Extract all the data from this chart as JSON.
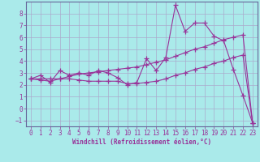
{
  "xlabel": "Windchill (Refroidissement éolien,°C)",
  "bg_color": "#aaeaea",
  "grid_color": "#aaaacc",
  "line_color": "#993399",
  "x_data": [
    0,
    1,
    2,
    3,
    4,
    5,
    6,
    7,
    8,
    9,
    10,
    11,
    12,
    13,
    14,
    15,
    16,
    17,
    18,
    19,
    20,
    21,
    22,
    23
  ],
  "y_main": [
    2.5,
    2.8,
    2.2,
    3.2,
    2.8,
    3.0,
    2.8,
    3.2,
    3.0,
    2.6,
    2.0,
    2.2,
    4.2,
    3.2,
    4.3,
    8.7,
    6.5,
    7.2,
    7.2,
    6.1,
    5.7,
    3.3,
    1.1,
    -1.2
  ],
  "y_upper": [
    2.5,
    2.5,
    2.5,
    2.5,
    2.7,
    2.9,
    3.0,
    3.1,
    3.2,
    3.3,
    3.4,
    3.5,
    3.7,
    3.9,
    4.1,
    4.4,
    4.7,
    5.0,
    5.2,
    5.5,
    5.8,
    6.0,
    6.2,
    -1.2
  ],
  "y_lower": [
    2.5,
    2.4,
    2.3,
    2.5,
    2.5,
    2.4,
    2.3,
    2.3,
    2.3,
    2.3,
    2.1,
    2.1,
    2.2,
    2.3,
    2.5,
    2.8,
    3.0,
    3.3,
    3.5,
    3.8,
    4.0,
    4.3,
    4.5,
    -1.2
  ],
  "ylim": [
    -1.5,
    9.0
  ],
  "xlim": [
    -0.5,
    23.5
  ],
  "yticks": [
    -1,
    0,
    1,
    2,
    3,
    4,
    5,
    6,
    7,
    8
  ],
  "xticks": [
    0,
    1,
    2,
    3,
    4,
    5,
    6,
    7,
    8,
    9,
    10,
    11,
    12,
    13,
    14,
    15,
    16,
    17,
    18,
    19,
    20,
    21,
    22,
    23
  ],
  "font_color": "#993399",
  "spine_color": "#666699"
}
